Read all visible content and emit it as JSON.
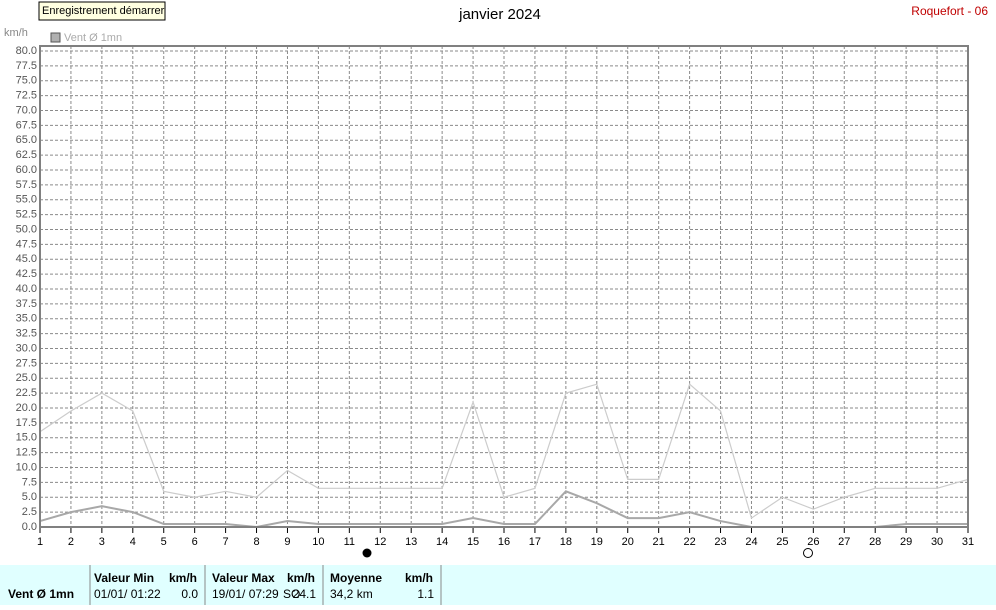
{
  "button": "Enregistrement démarrer",
  "station": "Roquefort - 06",
  "chart_data": {
    "type": "line",
    "title": "janvier 2024",
    "y_label": "km/h",
    "x": [
      1,
      2,
      3,
      4,
      5,
      6,
      7,
      8,
      9,
      10,
      11,
      12,
      13,
      14,
      15,
      16,
      17,
      18,
      19,
      20,
      21,
      22,
      23,
      24,
      25,
      26,
      27,
      28,
      29,
      30,
      31
    ],
    "xlim": [
      1,
      31
    ],
    "xticks": [
      1,
      2,
      3,
      4,
      5,
      6,
      7,
      8,
      9,
      10,
      11,
      12,
      13,
      14,
      15,
      16,
      17,
      18,
      19,
      20,
      21,
      22,
      23,
      24,
      25,
      26,
      27,
      28,
      29,
      30,
      31
    ],
    "ylim": [
      0,
      80
    ],
    "yticks": [
      {
        "value": 0,
        "label": "0.0"
      },
      2.5,
      {
        "value": 5,
        "label": "5.0"
      },
      7.5,
      {
        "value": 10,
        "label": "10.0"
      },
      12.5,
      {
        "value": 15,
        "label": "15.0"
      },
      17.5,
      {
        "value": 20,
        "label": "20.0"
      },
      22.5,
      {
        "value": 25,
        "label": "25.0"
      },
      27.5,
      {
        "value": 30,
        "label": "30.0"
      },
      32.5,
      {
        "value": 35,
        "label": "35.0"
      },
      37.5,
      {
        "value": 40,
        "label": "40.0"
      },
      42.5,
      {
        "value": 45,
        "label": "45.0"
      },
      47.5,
      {
        "value": 50,
        "label": "50.0"
      },
      52.5,
      {
        "value": 55,
        "label": "55.0"
      },
      57.5,
      {
        "value": 60,
        "label": "60.0"
      },
      62.5,
      {
        "value": 65,
        "label": "65.0"
      },
      67.5,
      {
        "value": 70,
        "label": "70.0"
      },
      72.5,
      {
        "value": 75,
        "label": "75.0"
      },
      77.5,
      {
        "value": 80,
        "label": "80.0"
      }
    ],
    "grid": true,
    "series": [
      {
        "name": "Vent Ø 1mn",
        "color": "#a8a8a8",
        "values": [
          1,
          2.5,
          3.5,
          2.5,
          0.5,
          0.5,
          0.5,
          0,
          1,
          0.5,
          0.5,
          0.5,
          0.5,
          0.5,
          1.5,
          0.5,
          0.5,
          6,
          4,
          1.5,
          1.5,
          2.5,
          1,
          0,
          0,
          0,
          0,
          0,
          0.5,
          0.5,
          0.5
        ]
      },
      {
        "color": "#cccccc",
        "values": [
          16,
          19.5,
          22.5,
          19.5,
          6,
          5,
          6,
          5,
          9.5,
          6.5,
          6.5,
          6.5,
          6.5,
          6.5,
          21,
          5,
          6.5,
          22.5,
          24,
          8,
          8,
          24,
          19.5,
          1.5,
          5,
          3,
          5,
          6.5,
          6.5,
          6.5,
          8
        ]
      }
    ]
  },
  "summary": {
    "label": "Vent Ø 1mn",
    "min": {
      "title": "Valeur Min",
      "unit": "km/h",
      "date": "01/01/ 01:22",
      "value": "0.0"
    },
    "max": {
      "title": "Valeur Max",
      "unit": "km/h",
      "date": "19/01/ 07:29",
      "dir": "SO",
      "value": "24.1"
    },
    "mean": {
      "title": "Moyenne",
      "unit": "km/h",
      "total": "34,2 km",
      "value": "1.1"
    }
  }
}
